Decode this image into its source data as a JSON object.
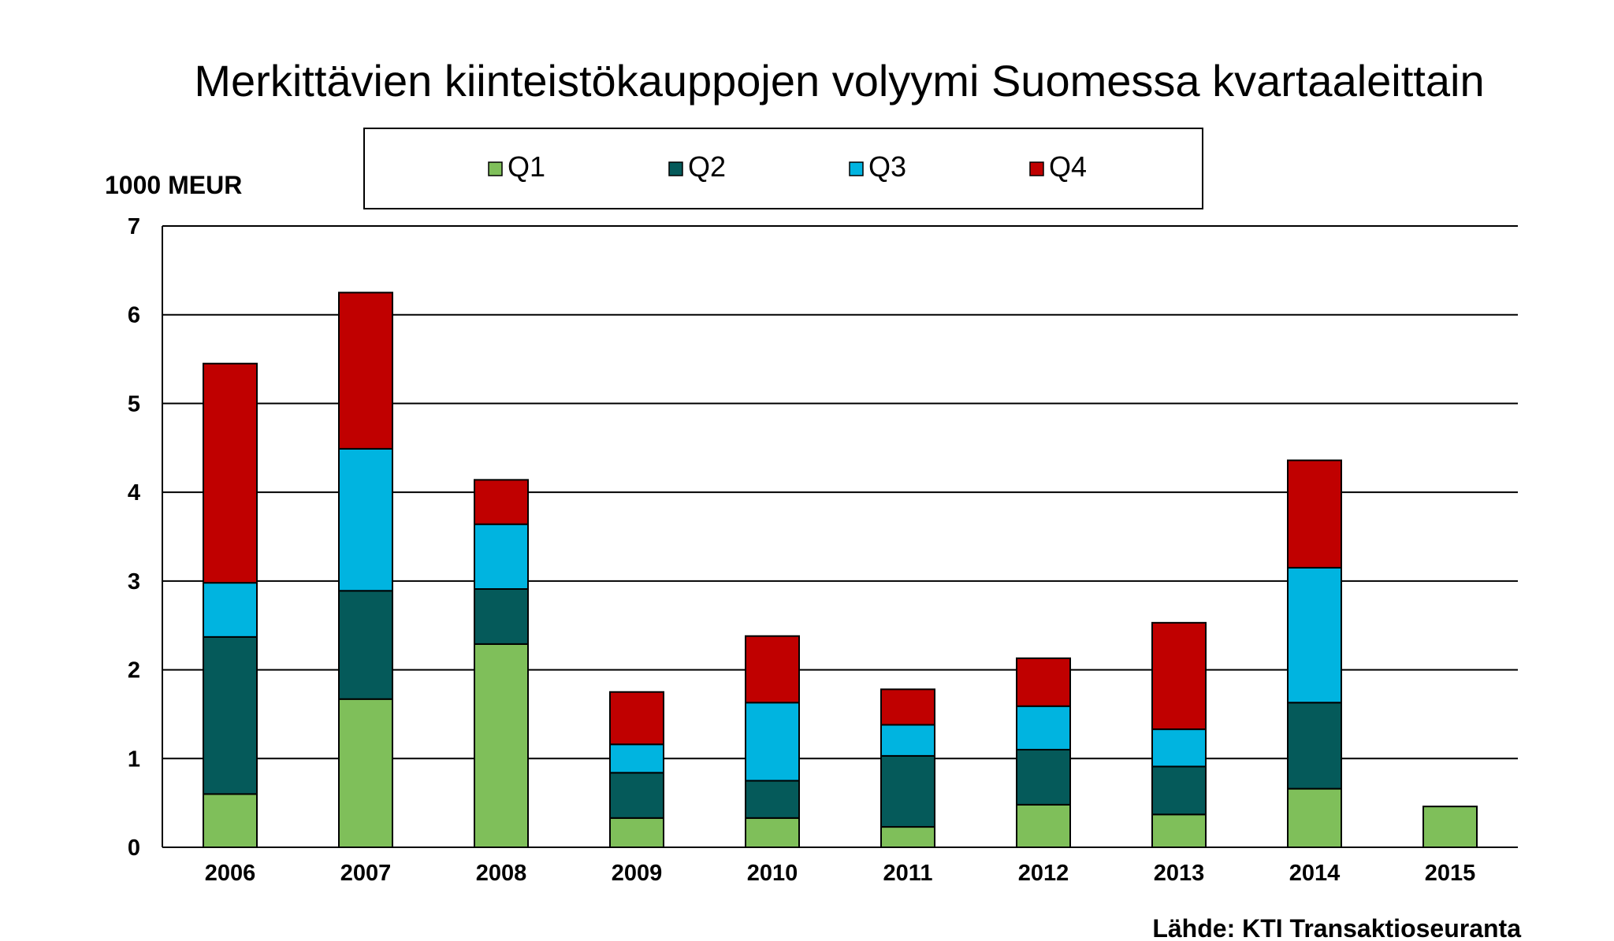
{
  "chart_data": {
    "type": "bar",
    "stacked": true,
    "title": "Merkittävien kiinteistökauppojen volyymi Suomessa kvartaaleittain",
    "ylabel": "1000 MEUR",
    "xlabel": "",
    "source": "Lähde: KTI Transaktioseuranta",
    "categories": [
      "2006",
      "2007",
      "2008",
      "2009",
      "2010",
      "2011",
      "2012",
      "2013",
      "2014",
      "2015"
    ],
    "ylim": [
      0,
      7
    ],
    "yticks": [
      "0",
      "1",
      "2",
      "3",
      "4",
      "5",
      "6",
      "7"
    ],
    "grid": true,
    "legend_position": "top",
    "series": [
      {
        "name": "Q1",
        "color": "#7fbf5a",
        "values": [
          0.6,
          1.67,
          2.29,
          0.33,
          0.33,
          0.23,
          0.48,
          0.37,
          0.66,
          0.46
        ]
      },
      {
        "name": "Q2",
        "color": "#055a5a",
        "values": [
          1.77,
          1.22,
          0.62,
          0.51,
          0.42,
          0.8,
          0.62,
          0.54,
          0.97,
          0
        ]
      },
      {
        "name": "Q3",
        "color": "#00b4e0",
        "values": [
          0.61,
          1.6,
          0.73,
          0.32,
          0.88,
          0.35,
          0.49,
          0.42,
          1.52,
          0
        ]
      },
      {
        "name": "Q4",
        "color": "#c00000",
        "values": [
          2.47,
          1.76,
          0.5,
          0.59,
          0.75,
          0.4,
          0.54,
          1.2,
          1.21,
          0
        ]
      }
    ]
  }
}
